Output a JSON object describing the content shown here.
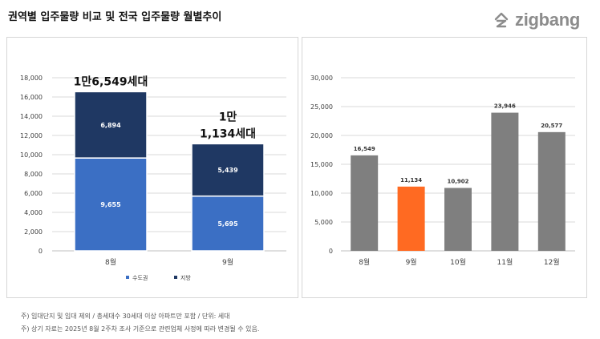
{
  "title": "권역별 입주물량 비교 및 전국 입주물량 월별추이",
  "brand": {
    "name": "zigbang",
    "icon": "zigbang-logo-icon"
  },
  "colors": {
    "capital": "#3b6fc4",
    "region": "#1f3863",
    "gray": "#7f7f7f",
    "highlight": "#ff6a22",
    "grid": "#d9d9d9"
  },
  "chart_data": [
    {
      "type": "bar",
      "stacked": true,
      "categories": [
        "8월",
        "9월"
      ],
      "series": [
        {
          "name": "수도권",
          "values": [
            9655,
            5695
          ],
          "labels": [
            "9,655",
            "5,695"
          ]
        },
        {
          "name": "지방",
          "values": [
            6894,
            5439
          ],
          "labels": [
            "6,894",
            "5,439"
          ]
        }
      ],
      "totals": [
        "1만6,549세대",
        "1만\n1,134세대"
      ],
      "ylim": [
        0,
        18000
      ],
      "yticks": [
        0,
        2000,
        4000,
        6000,
        8000,
        10000,
        12000,
        14000,
        16000,
        18000
      ],
      "ytick_labels": [
        "0",
        "2,000",
        "4,000",
        "6,000",
        "8,000",
        "10,000",
        "12,000",
        "14,000",
        "16,000",
        "18,000"
      ],
      "legend": [
        "수도권",
        "지방"
      ],
      "legend_position": "bottom",
      "grid": true
    },
    {
      "type": "bar",
      "categories": [
        "8월",
        "9월",
        "10월",
        "11월",
        "12월"
      ],
      "values": [
        16549,
        11134,
        10902,
        23946,
        20577
      ],
      "labels": [
        "16,549",
        "11,134",
        "10,902",
        "23,946",
        "20,577"
      ],
      "highlight_index": 1,
      "ylim": [
        0,
        30000
      ],
      "yticks": [
        0,
        5000,
        10000,
        15000,
        20000,
        25000,
        30000
      ],
      "ytick_labels": [
        "0",
        "5,000",
        "10,000",
        "15,000",
        "20,000",
        "25,000",
        "30,000"
      ],
      "grid": true
    }
  ],
  "notes": [
    "주) 임대단지 및 임대 제외 / 총세대수 30세대 이상 아파트만 포함 / 단위: 세대",
    "주) 상기 자료는 2025년 8월 2주차 조사 기준으로 관련업체 사정에 따라 변경될 수 있음."
  ]
}
